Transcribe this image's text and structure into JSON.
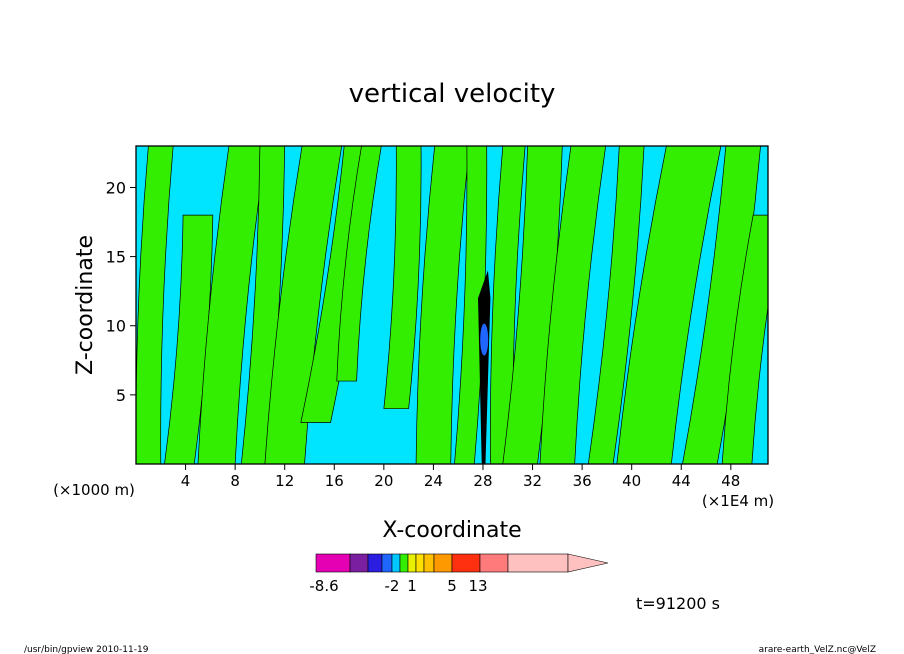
{
  "chart_data": {
    "type": "heatmap",
    "title": "vertical velocity",
    "xlabel": "X-coordinate",
    "ylabel": "Z-coordinate",
    "x_unit_left": "(×1000 m)",
    "x_unit_right": "(×1E4 m)",
    "xlim": [
      0,
      51
    ],
    "ylim": [
      0,
      23
    ],
    "x_ticks": [
      4,
      8,
      12,
      16,
      20,
      24,
      28,
      32,
      36,
      40,
      44,
      48
    ],
    "x_tick_labels": [
      "4",
      "8",
      "12",
      "16",
      "20",
      "24",
      "28",
      "32",
      "36",
      "40",
      "44",
      "48"
    ],
    "y_ticks": [
      5,
      10,
      15,
      20
    ],
    "y_tick_labels": [
      "5",
      "10",
      "15",
      "20"
    ],
    "background_color": "#00e5ff",
    "positive_color": "#33ee00",
    "colorbar": {
      "colors": [
        "#e600b3",
        "#7a1fa0",
        "#2b1ee0",
        "#1f66ff",
        "#00c8ff",
        "#33ee00",
        "#e6f000",
        "#ffe000",
        "#ffc000",
        "#ff9900",
        "#ff3010",
        "#ff7b7b",
        "#ffc0c0"
      ],
      "labels": [
        "-8.6",
        "-2",
        "1",
        "5",
        "13"
      ]
    },
    "time_label": "t=91200 s",
    "footer_left": "/usr/bin/gpview   2010-11-19",
    "footer_right": "arare-earth_VelZ.nc@VelZ"
  }
}
